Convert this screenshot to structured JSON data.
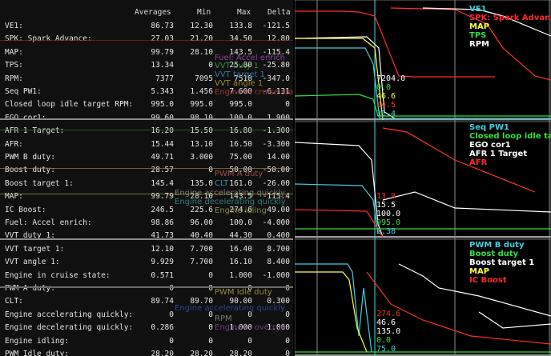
{
  "table": {
    "headers": {
      "averages": "Averages",
      "min": "Min",
      "max": "Max",
      "delta": "Delta"
    },
    "rows": [
      {
        "label": "VE1:",
        "avg": "86.73",
        "min": "12.30",
        "max": "133.8",
        "delta": "-121.5"
      },
      {
        "label": "SPK: Spark Advance:",
        "avg": "27.03",
        "min": "21.20",
        "max": "34.50",
        "delta": "12.80"
      },
      {
        "label": "MAP:",
        "avg": "99.79",
        "min": "28.10",
        "max": "143.5",
        "delta": "-115.4"
      },
      {
        "label": "TPS:",
        "avg": "13.34",
        "min": "0",
        "max": "25.80",
        "delta": "-25.80"
      },
      {
        "label": "RPM:",
        "avg": "7377",
        "min": "7095",
        "max": "7518",
        "delta": "-347.0"
      },
      {
        "label": "Seq PW1:",
        "avg": "5.343",
        "min": "1.456",
        "max": "7.600",
        "delta": "-6.131"
      },
      {
        "label": "Closed loop idle target RPM:",
        "avg": "995.0",
        "min": "995.0",
        "max": "995.0",
        "delta": "0"
      },
      {
        "label": "EGO cor1:",
        "avg": "99.60",
        "min": "98.10",
        "max": "100.0",
        "delta": "1.900"
      },
      {
        "label": "AFR 1 Target:",
        "avg": "16.20",
        "min": "15.50",
        "max": "16.80",
        "delta": "-1.300"
      },
      {
        "label": "AFR:",
        "avg": "15.44",
        "min": "13.10",
        "max": "16.50",
        "delta": "-3.300"
      },
      {
        "label": "PWM B duty:",
        "avg": "49.71",
        "min": "3.000",
        "max": "75.00",
        "delta": "14.00"
      },
      {
        "label": "Boost duty:",
        "avg": "28.57",
        "min": "0",
        "max": "50.00",
        "delta": "-50.00"
      },
      {
        "label": "Boost target 1:",
        "avg": "145.4",
        "min": "135.0",
        "max": "161.0",
        "delta": "-26.00"
      },
      {
        "label": "MAP:",
        "avg": "99.79",
        "min": "28.10",
        "max": "143.5",
        "delta": "-115.4"
      },
      {
        "label": "IC Boost:",
        "avg": "246.5",
        "min": "225.6",
        "max": "274.6",
        "delta": "49.00"
      },
      {
        "label": "Fuel: Accel enrich:",
        "avg": "98.86",
        "min": "96.00",
        "max": "100.0",
        "delta": "-4.000"
      },
      {
        "label": "VVT duty 1:",
        "avg": "41.73",
        "min": "40.40",
        "max": "44.30",
        "delta": "0.400"
      },
      {
        "label": "VVT target 1:",
        "avg": "12.10",
        "min": "7.700",
        "max": "16.40",
        "delta": "8.700"
      },
      {
        "label": "VVT angle 1:",
        "avg": "9.929",
        "min": "7.700",
        "max": "16.10",
        "delta": "8.400"
      },
      {
        "label": "Engine in cruise state:",
        "avg": "0.571",
        "min": "0",
        "max": "1.000",
        "delta": "-1.000"
      },
      {
        "label": "PWM A duty:",
        "avg": "0",
        "min": "0",
        "max": "0",
        "delta": "0"
      },
      {
        "label": "CLT:",
        "avg": "89.74",
        "min": "89.70",
        "max": "90.00",
        "delta": "0.300"
      },
      {
        "label": "Engine accelerating quickly:",
        "avg": "0",
        "min": "0",
        "max": "0",
        "delta": "0"
      },
      {
        "label": "Engine decelerating quickly:",
        "avg": "0.286",
        "min": "0",
        "max": "1.000",
        "delta": "1.000"
      },
      {
        "label": "Engine idling:",
        "avg": "0",
        "min": "0",
        "max": "0",
        "delta": "0"
      },
      {
        "label": "PWM Idle duty:",
        "avg": "28.20",
        "min": "28.20",
        "max": "28.20",
        "delta": "0"
      }
    ]
  },
  "ghost_labels": [
    {
      "text": "Fuel: Accel enrich",
      "color": "#9b4fb0"
    },
    {
      "text": "VVT duty 1",
      "color": "#3ea04a"
    },
    {
      "text": "VVT target 1",
      "color": "#3f86c0"
    },
    {
      "text": "VVT angle 1",
      "color": "#b0a030"
    },
    {
      "text": "Engine in cruise state",
      "color": "#b03a3a"
    },
    {
      "text": "PWM A duty",
      "color": "#b05a4a"
    },
    {
      "text": "CLT",
      "color": "#4aa0b0"
    },
    {
      "text": "Engine accelerating quickly",
      "color": "#8a8a8a"
    },
    {
      "text": "Engine decelerating quickly",
      "color": "#2f8f8f"
    },
    {
      "text": "Engine idling",
      "color": "#9a9a50"
    },
    {
      "text": "PWM Idle duty",
      "color": "#b0a030"
    },
    {
      "text": "Engine accelerating quickly",
      "color": "#3050a0"
    },
    {
      "text": "RPM",
      "color": "#8a8a8a"
    },
    {
      "text": "Engine in overrun",
      "color": "#7a4a8a"
    }
  ],
  "graphs": [
    {
      "legend": [
        {
          "text": "VE1",
          "color": "#3fd0e0"
        },
        {
          "text": "SPK: Spark Advance",
          "color": "#ff2a2a"
        },
        {
          "text": "MAP",
          "color": "#ffff40"
        },
        {
          "text": "TPS",
          "color": "#30e040"
        },
        {
          "text": "RPM",
          "color": "#ffffff"
        }
      ],
      "cursor_values": [
        {
          "text": "7204.0",
          "color": "#ffffff"
        },
        {
          "text": "0.0",
          "color": "#30e040"
        },
        {
          "text": "46.6",
          "color": "#ffff40"
        },
        {
          "text": "34.5",
          "color": "#ff2a2a"
        },
        {
          "text": "31.4",
          "color": "#3fd0e0"
        }
      ]
    },
    {
      "legend": [
        {
          "text": "Seq PW1",
          "color": "#3fd0e0"
        },
        {
          "text": "Closed loop idle target RPM",
          "color": "#30e040"
        },
        {
          "text": "EGO cor1",
          "color": "#ffffff"
        },
        {
          "text": "AFR 1 Target",
          "color": "#ffffff"
        },
        {
          "text": "AFR",
          "color": "#ff2a2a"
        }
      ],
      "cursor_values": [
        {
          "text": "13.9",
          "color": "#ff2a2a"
        },
        {
          "text": "15.5",
          "color": "#ffffff"
        },
        {
          "text": "100.0",
          "color": "#ffffff"
        },
        {
          "text": "995.0",
          "color": "#30e040"
        },
        {
          "text": "2.38",
          "color": "#3fd0e0"
        }
      ]
    },
    {
      "legend": [
        {
          "text": "PWM B duty",
          "color": "#3fd0e0"
        },
        {
          "text": "Boost duty",
          "color": "#30e040"
        },
        {
          "text": "Boost target 1",
          "color": "#ffffff"
        },
        {
          "text": "MAP",
          "color": "#ffff40"
        },
        {
          "text": "IC Boost",
          "color": "#ff2a2a"
        }
      ],
      "cursor_values": [
        {
          "text": "274.6",
          "color": "#ff2a2a"
        },
        {
          "text": "46.6",
          "color": "#ffffff"
        },
        {
          "text": "135.0",
          "color": "#ffffff"
        },
        {
          "text": "0.0",
          "color": "#30e040"
        },
        {
          "text": "75.0",
          "color": "#3fd0e0"
        }
      ]
    }
  ]
}
